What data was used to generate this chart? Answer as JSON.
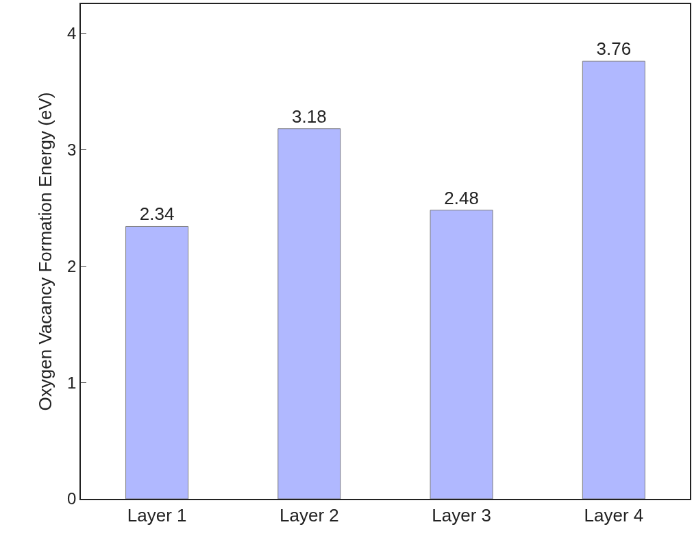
{
  "chart_data": {
    "type": "bar",
    "ylabel": "Oxygen Vacancy Formation Energy (eV)",
    "categories": [
      "Layer 1",
      "Layer 2",
      "Layer 3",
      "Layer 4"
    ],
    "values": [
      2.34,
      3.18,
      2.48,
      3.76
    ],
    "color": "#b0b8ff",
    "ylim": [
      0,
      4.25
    ],
    "yticks": [
      0,
      1,
      2,
      3,
      4
    ],
    "data_labels": true
  }
}
